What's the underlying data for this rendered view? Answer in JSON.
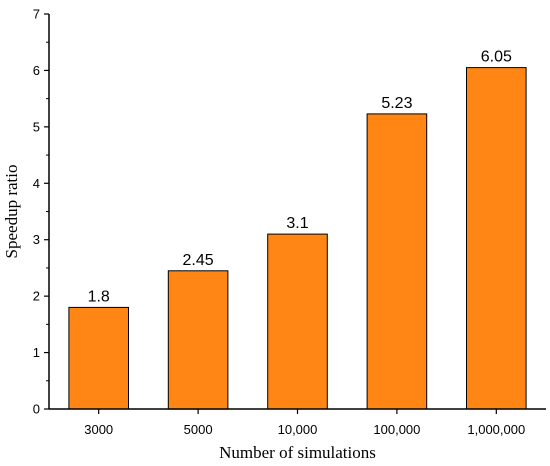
{
  "chart_data": {
    "type": "bar",
    "title": "",
    "xlabel": "Number of simulations",
    "ylabel": "Speedup ratio",
    "categories": [
      "3000",
      "5000",
      "10,000",
      "100,000",
      "1,000,000"
    ],
    "values": [
      1.8,
      2.45,
      3.1,
      5.23,
      6.05
    ],
    "data_labels": [
      "1.8",
      "2.45",
      "3.1",
      "5.23",
      "6.05"
    ],
    "ylim": [
      0,
      7
    ],
    "yticks": [
      "0",
      "1",
      "2",
      "3",
      "4",
      "5",
      "6",
      "7"
    ],
    "bar_color": "#ff8614",
    "bar_edge_color": "#000000",
    "grid": false,
    "legend": "none"
  }
}
